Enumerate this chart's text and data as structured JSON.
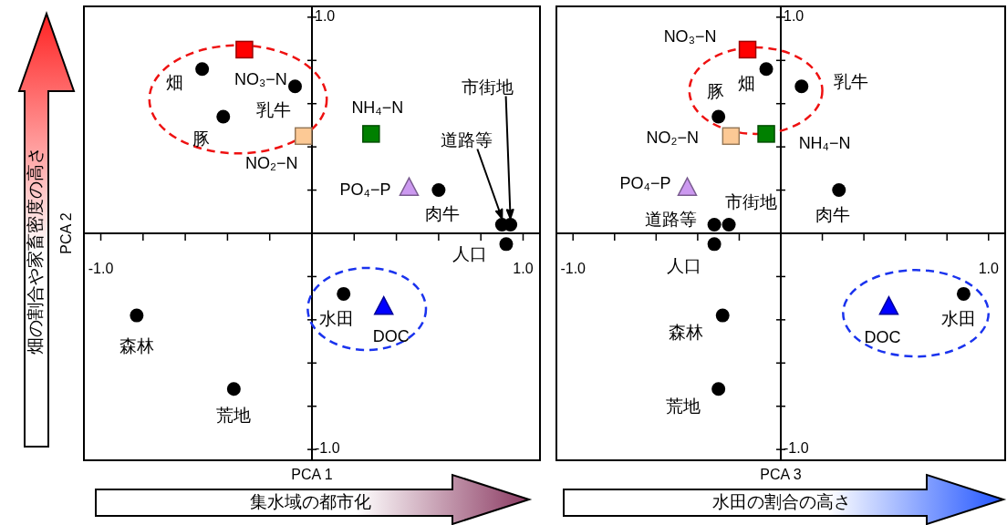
{
  "chart_data": [
    {
      "type": "scatter",
      "xlabel": "PCA 1",
      "ylabel": "PCA 2",
      "xlim": [
        -1.08,
        1.08
      ],
      "ylim": [
        -1.05,
        1.05
      ],
      "xticks": [
        {
          "value": -1,
          "label": "-1.0"
        },
        {
          "value": -0.8,
          "label": null
        },
        {
          "value": -0.6,
          "label": null
        },
        {
          "value": -0.4,
          "label": null
        },
        {
          "value": -0.2,
          "label": null
        },
        {
          "value": 0.2,
          "label": null
        },
        {
          "value": 0.4,
          "label": null
        },
        {
          "value": 0.6,
          "label": null
        },
        {
          "value": 0.8,
          "label": null
        },
        {
          "value": 1,
          "label": "1.0"
        }
      ],
      "yticks": [
        {
          "value": -1,
          "label": "-1.0"
        },
        {
          "value": -0.8,
          "label": null
        },
        {
          "value": -0.6,
          "label": null
        },
        {
          "value": -0.4,
          "label": null
        },
        {
          "value": -0.2,
          "label": null
        },
        {
          "value": 0.2,
          "label": null
        },
        {
          "value": 0.4,
          "label": null
        },
        {
          "value": 0.6,
          "label": null
        },
        {
          "value": 0.8,
          "label": null
        },
        {
          "value": 1,
          "label": "1.0"
        }
      ],
      "series": [
        {
          "color": "#000000",
          "marker": "circle",
          "x": [
            -0.52,
            -0.08,
            -0.42,
            0.6,
            0.9,
            0.94,
            0.92,
            -0.83,
            -0.37,
            0.15
          ],
          "values": [
            0.76,
            0.68,
            0.54,
            0.2,
            0.04,
            0.04,
            -0.05,
            -0.38,
            -0.72,
            -0.28
          ]
        },
        {
          "name": "NO₃−N",
          "color": "#ff0000",
          "marker": "square",
          "x": [
            -0.32
          ],
          "values": [
            0.85
          ]
        },
        {
          "name": "NH₄−N",
          "color": "#008000",
          "marker": "square",
          "x": [
            0.28
          ],
          "values": [
            0.46
          ]
        },
        {
          "name": "NO₂−N",
          "color": "#fcc995",
          "marker": "square",
          "x": [
            -0.04
          ],
          "values": [
            0.45
          ]
        },
        {
          "name": "PO₄−P",
          "color": "#cc99f0",
          "marker": "triangle",
          "x": [
            0.46
          ],
          "values": [
            0.21
          ]
        },
        {
          "name": "DOC",
          "color": "#0000ff",
          "marker": "triangle",
          "x": [
            0.34
          ],
          "values": [
            -0.34
          ]
        }
      ],
      "annotations": [
        {
          "text": "畑",
          "x": -0.52,
          "y": 0.76
        },
        {
          "text": "乳牛",
          "x": -0.08,
          "y": 0.68
        },
        {
          "text": "豚",
          "x": -0.42,
          "y": 0.54
        },
        {
          "text": "肉牛",
          "x": 0.6,
          "y": 0.2
        },
        {
          "text": "人口",
          "x": 0.92,
          "y": -0.05
        },
        {
          "text": "森林",
          "x": -0.83,
          "y": -0.38
        },
        {
          "text": "荒地",
          "x": -0.37,
          "y": -0.72
        },
        {
          "text": "水田",
          "x": 0.15,
          "y": -0.28
        },
        "道路等",
        "市街地",
        "集水域の都市化",
        "畑の割合や家畜密度の高さ"
      ]
    },
    {
      "type": "scatter",
      "xlabel": "PCA 3",
      "xlim": [
        -1.08,
        1.08
      ],
      "ylim": [
        -1.05,
        1.05
      ],
      "xticks": [
        {
          "value": -1,
          "label": "-1.0"
        },
        {
          "value": -0.8,
          "label": null
        },
        {
          "value": -0.6,
          "label": null
        },
        {
          "value": -0.4,
          "label": null
        },
        {
          "value": -0.2,
          "label": null
        },
        {
          "value": 0.2,
          "label": null
        },
        {
          "value": 0.4,
          "label": null
        },
        {
          "value": 0.6,
          "label": null
        },
        {
          "value": 0.8,
          "label": null
        },
        {
          "value": 1,
          "label": "1.0"
        }
      ],
      "yticks": [
        {
          "value": -1,
          "label": "-1.0"
        },
        {
          "value": -0.8,
          "label": null
        },
        {
          "value": -0.6,
          "label": null
        },
        {
          "value": -0.4,
          "label": null
        },
        {
          "value": -0.2,
          "label": null
        },
        {
          "value": 0.2,
          "label": null
        },
        {
          "value": 0.4,
          "label": null
        },
        {
          "value": 0.6,
          "label": null
        },
        {
          "value": 0.8,
          "label": null
        },
        {
          "value": 1,
          "label": "1.0"
        }
      ],
      "series": [
        {
          "color": "#000000",
          "marker": "circle",
          "x": [
            -0.07,
            0.1,
            -0.3,
            0.28,
            -0.32,
            -0.25,
            -0.32,
            -0.28,
            -0.3,
            0.88
          ],
          "values": [
            0.76,
            0.68,
            0.54,
            0.2,
            0.04,
            0.04,
            -0.05,
            -0.38,
            -0.72,
            -0.28
          ]
        },
        {
          "name": "NO₃−N",
          "color": "#ff0000",
          "marker": "square",
          "x": [
            -0.16
          ],
          "values": [
            0.85
          ]
        },
        {
          "name": "NH₄−N",
          "color": "#008000",
          "marker": "square",
          "x": [
            -0.07
          ],
          "values": [
            0.46
          ]
        },
        {
          "name": "NO₂−N",
          "color": "#fcc995",
          "marker": "square",
          "x": [
            -0.24
          ],
          "values": [
            0.45
          ]
        },
        {
          "name": "PO₄−P",
          "color": "#cc99f0",
          "marker": "triangle",
          "x": [
            -0.45
          ],
          "values": [
            0.21
          ]
        },
        {
          "name": "DOC",
          "color": "#0000ff",
          "marker": "triangle",
          "x": [
            0.52
          ],
          "values": [
            -0.34
          ]
        }
      ],
      "annotations": [
        {
          "text": "畑",
          "x": -0.07,
          "y": 0.76
        },
        {
          "text": "乳牛",
          "x": 0.1,
          "y": 0.68
        },
        {
          "text": "豚",
          "x": -0.3,
          "y": 0.54
        },
        {
          "text": "肉牛",
          "x": 0.28,
          "y": 0.2
        },
        {
          "text": "道路等",
          "x": -0.32,
          "y": 0.04
        },
        {
          "text": "市街地",
          "x": -0.25,
          "y": 0.04
        },
        {
          "text": "人口",
          "x": -0.32,
          "y": -0.05
        },
        {
          "text": "森林",
          "x": -0.28,
          "y": -0.38
        },
        {
          "text": "荒地",
          "x": -0.3,
          "y": -0.72
        },
        {
          "text": "水田",
          "x": 0.88,
          "y": -0.28
        },
        "水田の割合の高さ"
      ]
    }
  ]
}
